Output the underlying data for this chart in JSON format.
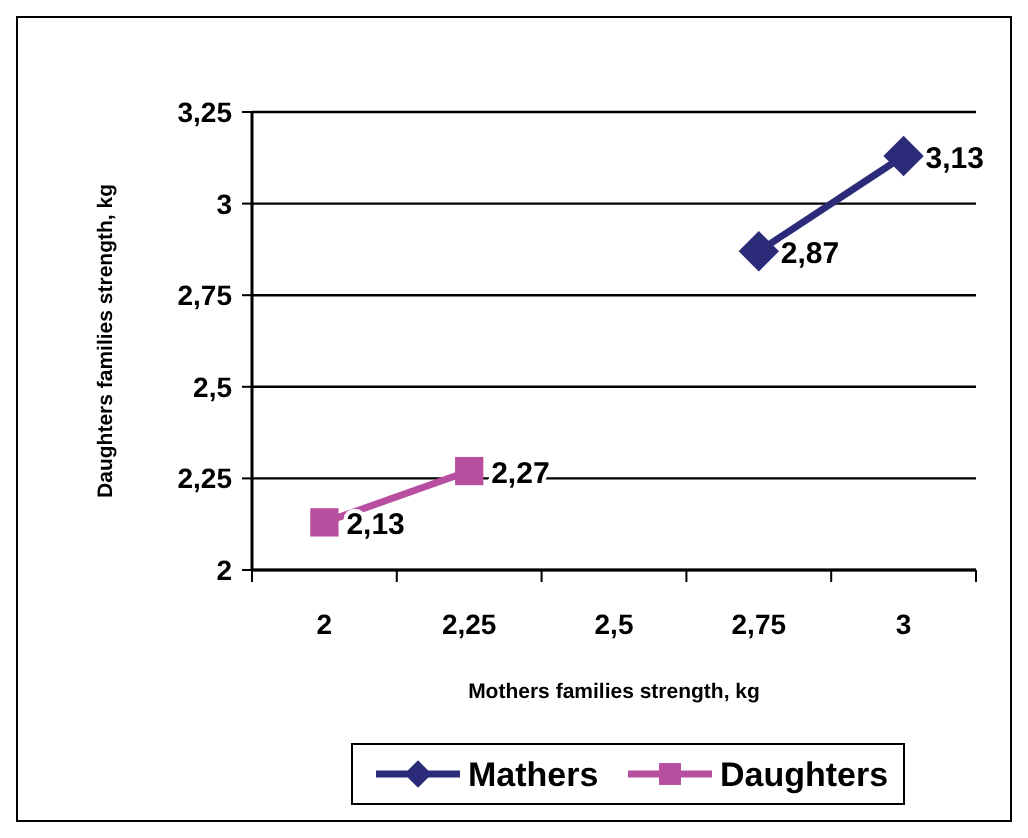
{
  "chart_data": {
    "type": "line",
    "xlabel": "Mothers families strength, kg",
    "ylabel": "Daughters families strength, kg",
    "categories": [
      "2",
      "2,25",
      "2,5",
      "2,75",
      "3"
    ],
    "series": [
      {
        "name": "Mathers",
        "color": "#2b2b7a",
        "marker": "diamond",
        "values": [
          null,
          null,
          null,
          2.87,
          3.13
        ],
        "value_labels": [
          null,
          null,
          null,
          "2,87",
          "3,13"
        ]
      },
      {
        "name": "Daughters",
        "color": "#b84ea0",
        "marker": "square",
        "values": [
          2.13,
          2.27,
          null,
          null,
          null
        ],
        "value_labels": [
          "2,13",
          "2,27",
          null,
          null,
          null
        ]
      }
    ],
    "ylim": [
      2,
      3.25
    ],
    "yticks": [
      {
        "value": 2,
        "label": "2"
      },
      {
        "value": 2.25,
        "label": "2,25"
      },
      {
        "value": 2.5,
        "label": "2,5"
      },
      {
        "value": 2.75,
        "label": "2,75"
      },
      {
        "value": 3,
        "label": "3"
      },
      {
        "value": 3.25,
        "label": "3,25"
      }
    ],
    "grid": "y",
    "legend": "bottom",
    "line_style": "solid"
  }
}
